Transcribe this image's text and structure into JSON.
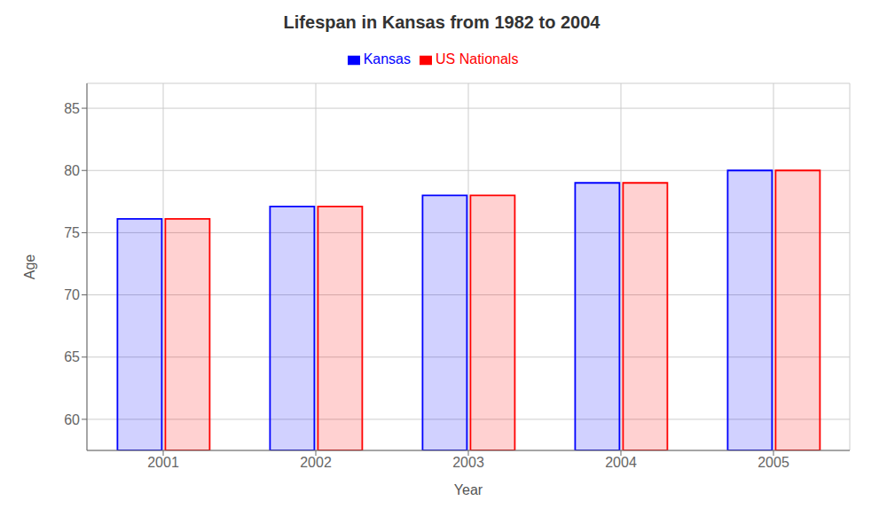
{
  "chart_data": {
    "type": "bar",
    "title": "Lifespan in Kansas from 1982 to 2004",
    "x_label": "Year",
    "y_label": "Age",
    "categories": [
      "2001",
      "2002",
      "2003",
      "2004",
      "2005"
    ],
    "series": [
      {
        "name": "Kansas",
        "color": "#0000ff",
        "values": [
          76.1,
          77.1,
          78.0,
          79.0,
          80.0
        ]
      },
      {
        "name": "US Nationals",
        "color": "#ff0000",
        "values": [
          76.1,
          77.1,
          78.0,
          79.0,
          80.0
        ]
      }
    ],
    "ylim": [
      57.5,
      87
    ],
    "yticks": [
      60,
      65,
      70,
      75,
      80,
      85
    ],
    "grid": true,
    "legend": "top"
  }
}
